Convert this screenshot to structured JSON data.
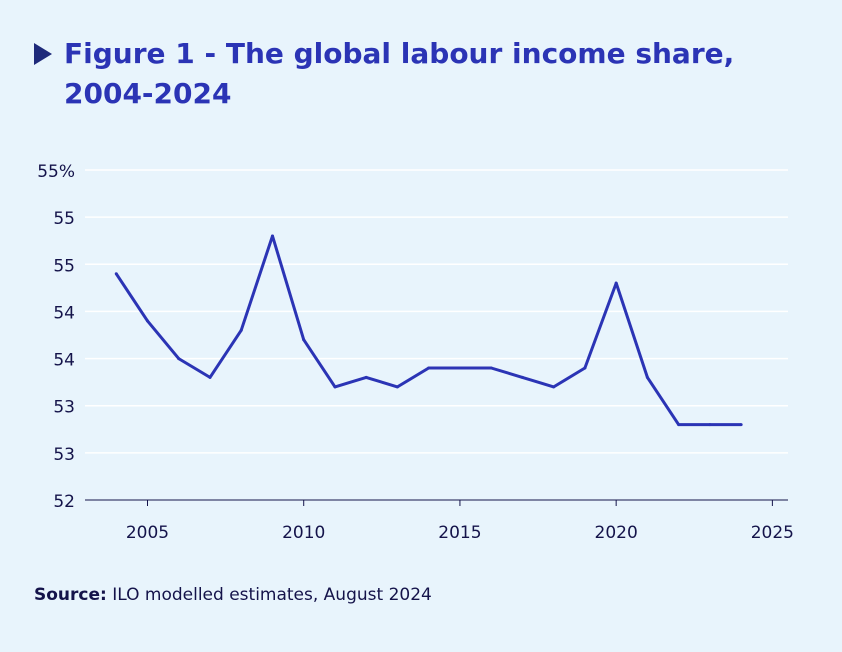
{
  "chart_data": {
    "type": "line",
    "title": "Figure 1 - The global labour income share, 2004-2024",
    "xlabel": "",
    "ylabel": "",
    "xlim": [
      2003,
      2025.5
    ],
    "ylim": [
      52,
      55.5
    ],
    "xticks": [
      2005,
      2010,
      2015,
      2020,
      2025
    ],
    "yticks": [
      52,
      52.5,
      53,
      53.5,
      54,
      54.5,
      55,
      55.5
    ],
    "ytick_labels": [
      "52",
      "53",
      "53",
      "54",
      "54",
      "55",
      "55",
      "55%"
    ],
    "grid": true,
    "legend": "none",
    "series": [
      {
        "color": "#2b34b5",
        "x": [
          2004,
          2005,
          2006,
          2007,
          2008,
          2009,
          2010,
          2011,
          2012,
          2013,
          2014,
          2015,
          2016,
          2017,
          2018,
          2019,
          2020,
          2021,
          2022,
          2023,
          2024
        ],
        "values": [
          54.4,
          53.9,
          53.5,
          53.3,
          53.8,
          54.8,
          53.7,
          53.2,
          53.3,
          53.2,
          53.4,
          53.4,
          53.4,
          53.3,
          53.2,
          53.4,
          54.3,
          53.3,
          52.8,
          52.8,
          52.8
        ]
      }
    ]
  },
  "source": {
    "label": "Source:",
    "text": " ILO modelled estimates, August 2024"
  }
}
